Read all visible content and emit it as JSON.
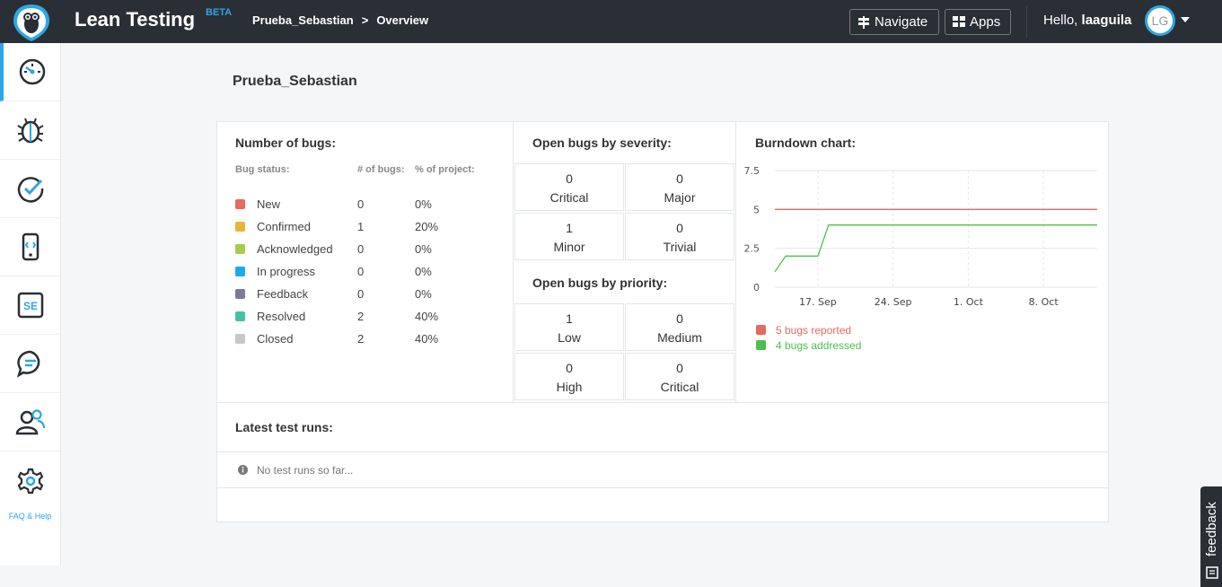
{
  "header": {
    "app_name": "Lean Testing",
    "beta_label": "BETA",
    "breadcrumb": [
      "Prueba_Sebastian",
      ">",
      "Overview"
    ],
    "navigate_label": "Navigate",
    "apps_label": "Apps",
    "greeting": "Hello,",
    "username": "laaguila",
    "avatar_initials": "LG"
  },
  "sidebar": {
    "items": [
      "dashboard-icon",
      "bug-icon",
      "checkmark-icon",
      "mobile-device-icon",
      "se-icon",
      "chat-icon",
      "user-group-icon",
      "gear-icon"
    ],
    "faq_label": "FAQ & Help"
  },
  "page": {
    "title": "Prueba_Sebastian"
  },
  "bugs": {
    "title": "Number of bugs:",
    "col_status": "Bug status:",
    "col_count": "# of bugs:",
    "col_pct": "% of project:",
    "rows": [
      {
        "name": "New",
        "count": "0",
        "pct": "0%",
        "color": "#e8695f"
      },
      {
        "name": "Confirmed",
        "count": "1",
        "pct": "20%",
        "color": "#eab536"
      },
      {
        "name": "Acknowledged",
        "count": "0",
        "pct": "0%",
        "color": "#a8cb4e"
      },
      {
        "name": "In progress",
        "count": "0",
        "pct": "0%",
        "color": "#1ca9ee"
      },
      {
        "name": "Feedback",
        "count": "0",
        "pct": "0%",
        "color": "#7a7a99"
      },
      {
        "name": "Resolved",
        "count": "2",
        "pct": "40%",
        "color": "#43c2a6"
      },
      {
        "name": "Closed",
        "count": "2",
        "pct": "40%",
        "color": "#c4c7cb"
      }
    ]
  },
  "severity": {
    "title": "Open bugs by severity:",
    "cells": [
      {
        "num": "0",
        "label": "Critical"
      },
      {
        "num": "0",
        "label": "Major"
      },
      {
        "num": "1",
        "label": "Minor"
      },
      {
        "num": "0",
        "label": "Trivial"
      }
    ]
  },
  "priority": {
    "title": "Open bugs by priority:",
    "cells": [
      {
        "num": "1",
        "label": "Low"
      },
      {
        "num": "0",
        "label": "Medium"
      },
      {
        "num": "0",
        "label": "High"
      },
      {
        "num": "0",
        "label": "Critical"
      }
    ]
  },
  "burndown": {
    "title": "Burndown chart:",
    "legend": [
      {
        "label": "5 bugs reported",
        "color": "#e8695f"
      },
      {
        "label": "4 bugs addressed",
        "color": "#4cc04c"
      }
    ]
  },
  "chart_data": {
    "type": "line",
    "title": "Burndown chart:",
    "x_ticks": [
      "17. Sep",
      "24. Sep",
      "1. Oct",
      "8. Oct"
    ],
    "y_ticks": [
      "0",
      "2.5",
      "5",
      "7.5"
    ],
    "ylim": [
      0,
      7.5
    ],
    "x_domain": [
      "2014-09-13",
      "2014-10-13"
    ],
    "series": [
      {
        "name": "5 bugs reported",
        "color": "#e8695f",
        "points": [
          [
            "2014-09-13",
            5
          ],
          [
            "2014-10-13",
            5
          ]
        ]
      },
      {
        "name": "4 bugs addressed",
        "color": "#4cc04c",
        "points": [
          [
            "2014-09-13",
            1
          ],
          [
            "2014-09-14",
            2
          ],
          [
            "2014-09-17",
            2
          ],
          [
            "2014-09-18",
            4
          ],
          [
            "2014-10-13",
            4
          ]
        ]
      }
    ]
  },
  "test_runs": {
    "title": "Latest test runs:",
    "empty_text": "No test runs so far..."
  },
  "feedback_label": "feedback"
}
